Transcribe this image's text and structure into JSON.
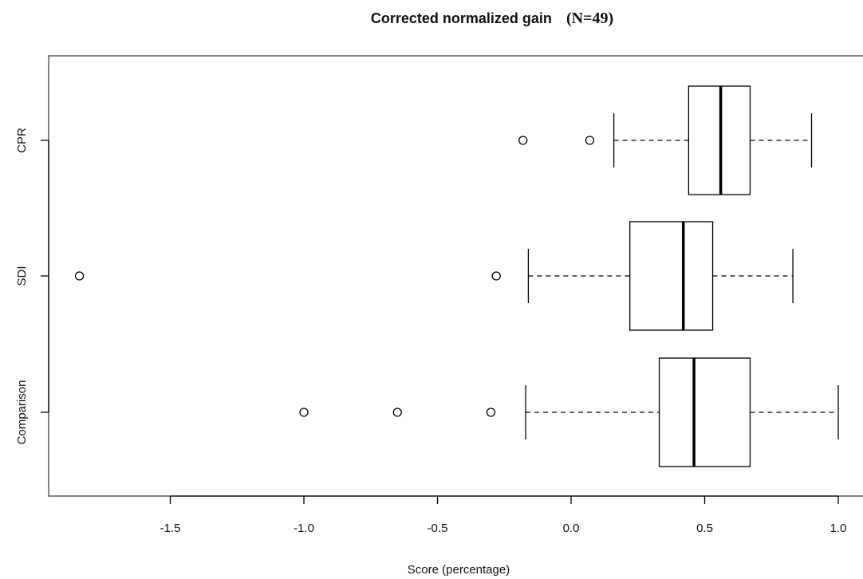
{
  "chart_data": {
    "type": "boxplot",
    "orientation": "horizontal",
    "title": "Corrected normalized gain",
    "title_suffix": "(N=49)",
    "xlabel": "Score (percentage)",
    "ylabel": "",
    "xlim": [
      -1.95,
      1.09
    ],
    "xticks": [
      -1.5,
      -1.0,
      -0.5,
      0.0,
      0.5,
      1.0
    ],
    "xtick_labels": [
      "-1.5",
      "-1.0",
      "-0.5",
      "0.0",
      "0.5",
      "1.0"
    ],
    "grid": false,
    "legend": "none",
    "categories": [
      "CPR",
      "SDI",
      "Comparison"
    ],
    "boxes": [
      {
        "label": "CPR",
        "whisker_low": 0.16,
        "q1": 0.44,
        "median": 0.56,
        "q3": 0.67,
        "whisker_high": 0.9,
        "outliers": [
          -0.18,
          0.07
        ]
      },
      {
        "label": "SDI",
        "whisker_low": -0.16,
        "q1": 0.22,
        "median": 0.42,
        "q3": 0.53,
        "whisker_high": 0.83,
        "outliers": [
          -1.84,
          -0.28
        ]
      },
      {
        "label": "Comparison",
        "whisker_low": -0.17,
        "q1": 0.33,
        "median": 0.46,
        "q3": 0.67,
        "whisker_high": 1.0,
        "outliers": [
          -1.0,
          -0.65,
          -0.3
        ]
      }
    ],
    "colors": {
      "box_fill": "#ffffff",
      "line": "#000000"
    }
  }
}
